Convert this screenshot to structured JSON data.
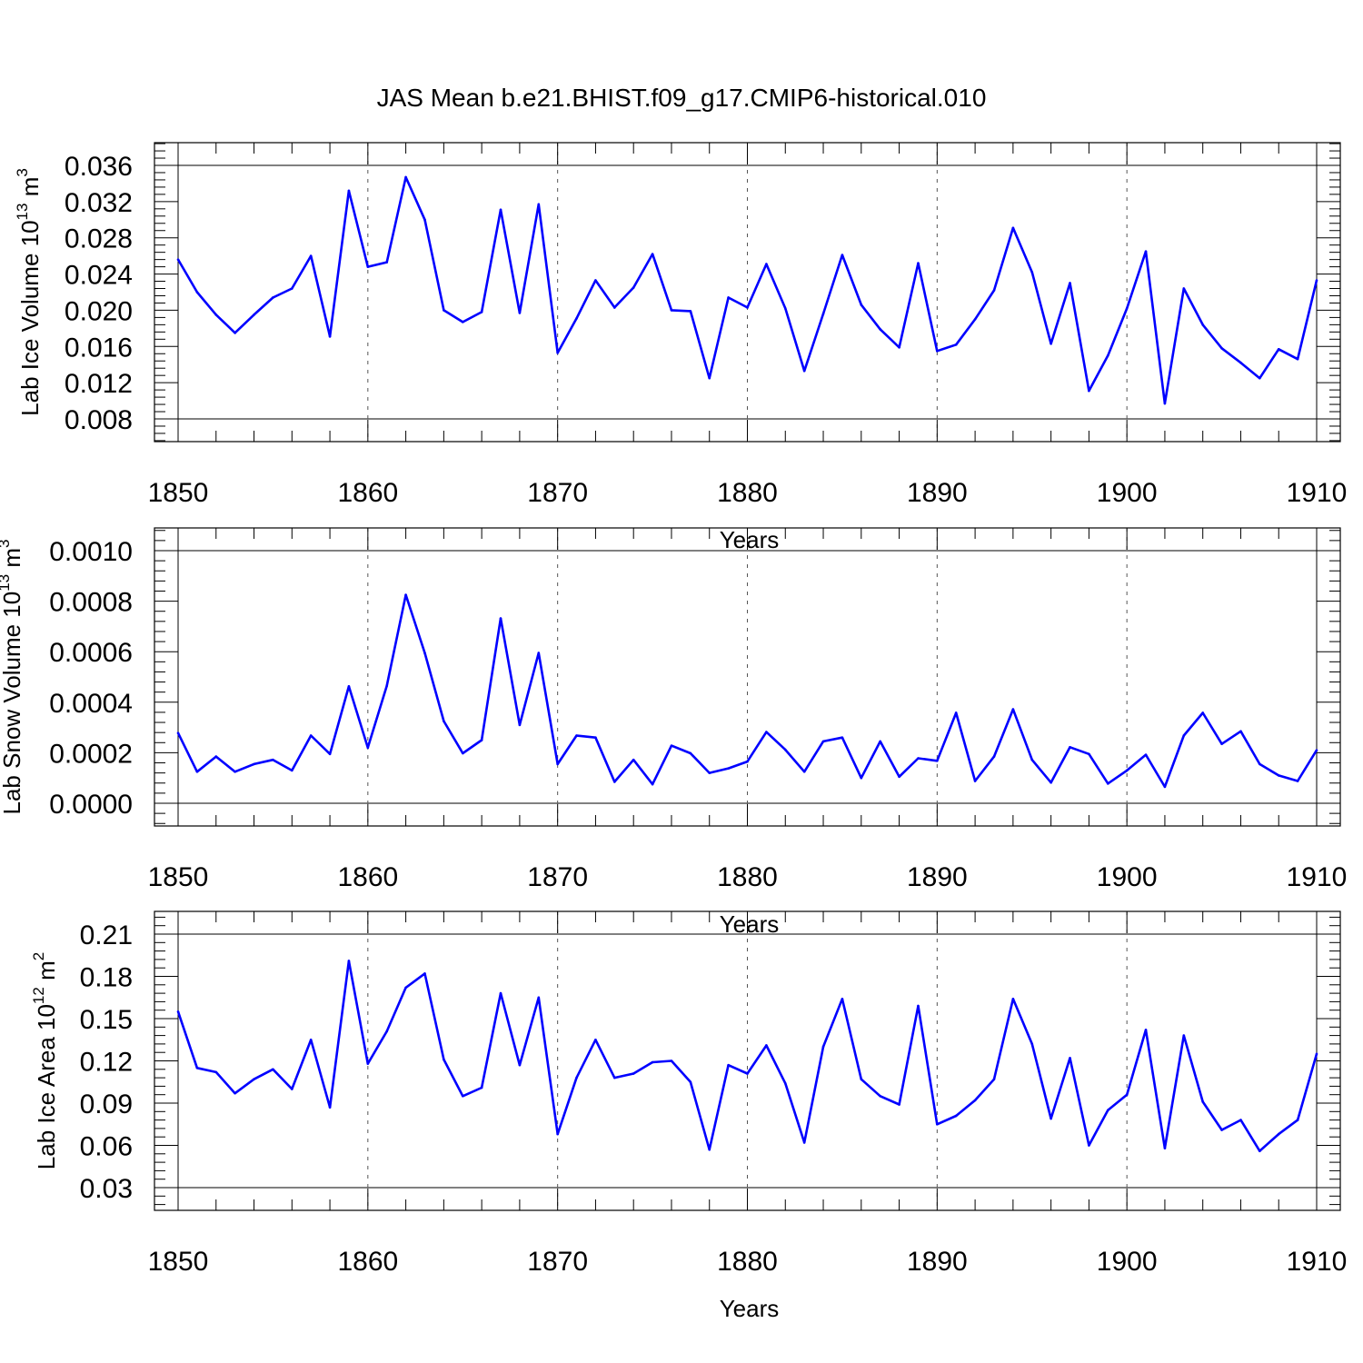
{
  "title": "JAS Mean b.e21.BHIST.f09_g17.CMIP6-historical.010",
  "chart_data": [
    {
      "type": "line",
      "ylabel": "Lab Ice Volume 10",
      "ylabel_exp": "13",
      "ylabel_unit": "m",
      "ylabel_unit_exp": "3",
      "xlabel": "Years",
      "xlim": [
        1850,
        1910
      ],
      "ylim": [
        0.008,
        0.038
      ],
      "xticks": [
        "1850",
        "1860",
        "1870",
        "1880",
        "1890",
        "1900",
        "1910"
      ],
      "yticks": [
        "0.008",
        "0.012",
        "0.016",
        "0.020",
        "0.024",
        "0.028",
        "0.032",
        "0.036"
      ],
      "ytick_values": [
        0.008,
        0.012,
        0.016,
        0.02,
        0.024,
        0.028,
        0.032,
        0.036
      ],
      "x_start": 1850,
      "values": [
        0.0256,
        0.022,
        0.0195,
        0.0175,
        0.0195,
        0.0214,
        0.0224,
        0.026,
        0.0171,
        0.0332,
        0.0248,
        0.0253,
        0.0347,
        0.03,
        0.02,
        0.0187,
        0.0198,
        0.0311,
        0.0197,
        0.0317,
        0.0153,
        0.0191,
        0.0233,
        0.0203,
        0.0225,
        0.0262,
        0.02,
        0.0199,
        0.0125,
        0.0214,
        0.0203,
        0.0251,
        0.0202,
        0.0133,
        0.0196,
        0.0261,
        0.0206,
        0.0179,
        0.0159,
        0.0252,
        0.0155,
        0.0162,
        0.019,
        0.0222,
        0.0291,
        0.0242,
        0.0163,
        0.023,
        0.0111,
        0.015,
        0.0202,
        0.0265,
        0.0097,
        0.0224,
        0.0184,
        0.0158,
        0.0142,
        0.0125,
        0.0157,
        0.0146,
        0.0233
      ]
    },
    {
      "type": "line",
      "ylabel": "Lab Snow Volume 10",
      "ylabel_exp": "13",
      "ylabel_unit": "m",
      "ylabel_unit_exp": "3",
      "xlabel": "Years",
      "xlim": [
        1850,
        1910
      ],
      "ylim": [
        0.0,
        0.00108
      ],
      "xticks": [
        "1850",
        "1860",
        "1870",
        "1880",
        "1890",
        "1900",
        "1910"
      ],
      "yticks": [
        "0.0000",
        "0.0002",
        "0.0004",
        "0.0006",
        "0.0008",
        "0.0010"
      ],
      "ytick_values": [
        0.0,
        0.0002,
        0.0004,
        0.0006,
        0.0008,
        0.001
      ],
      "x_start": 1850,
      "values": [
        0.000278,
        0.000125,
        0.000185,
        0.000125,
        0.000155,
        0.000172,
        0.00013,
        0.000268,
        0.000195,
        0.000463,
        0.00022,
        0.000465,
        0.000825,
        0.000595,
        0.000325,
        0.000198,
        0.00025,
        0.000732,
        0.00031,
        0.000595,
        0.000155,
        0.000268,
        0.00026,
        8.5e-05,
        0.000172,
        7.5e-05,
        0.000228,
        0.000198,
        0.00012,
        0.000138,
        0.000165,
        0.000282,
        0.000212,
        0.000125,
        0.000245,
        0.00026,
        0.0001,
        0.000245,
        0.000105,
        0.000178,
        0.000168,
        0.000358,
        8.8e-05,
        0.000185,
        0.000372,
        0.000172,
        8.2e-05,
        0.000222,
        0.000195,
        7.8e-05,
        0.00013,
        0.000192,
        6.5e-05,
        0.000268,
        0.000358,
        0.000235,
        0.000285,
        0.000155,
        0.00011,
        8.8e-05,
        0.00021
      ]
    },
    {
      "type": "line",
      "ylabel": "Lab Ice Area 10",
      "ylabel_exp": "12",
      "ylabel_unit": "m",
      "ylabel_unit_exp": "2",
      "xlabel": "Years",
      "xlim": [
        1850,
        1910
      ],
      "ylim": [
        0.03,
        0.228
      ],
      "xticks": [
        "1850",
        "1860",
        "1870",
        "1880",
        "1890",
        "1900",
        "1910"
      ],
      "yticks": [
        "0.03",
        "0.06",
        "0.09",
        "0.12",
        "0.15",
        "0.18",
        "0.21"
      ],
      "ytick_values": [
        0.03,
        0.06,
        0.09,
        0.12,
        0.15,
        0.18,
        0.21
      ],
      "x_start": 1850,
      "values": [
        0.155,
        0.115,
        0.112,
        0.097,
        0.107,
        0.114,
        0.1,
        0.135,
        0.087,
        0.191,
        0.118,
        0.141,
        0.172,
        0.182,
        0.121,
        0.095,
        0.101,
        0.168,
        0.117,
        0.165,
        0.068,
        0.108,
        0.135,
        0.108,
        0.111,
        0.119,
        0.12,
        0.105,
        0.057,
        0.117,
        0.111,
        0.131,
        0.104,
        0.062,
        0.13,
        0.164,
        0.107,
        0.095,
        0.089,
        0.159,
        0.075,
        0.081,
        0.092,
        0.107,
        0.164,
        0.132,
        0.079,
        0.122,
        0.06,
        0.085,
        0.096,
        0.142,
        0.058,
        0.138,
        0.091,
        0.071,
        0.078,
        0.056,
        0.068,
        0.078,
        0.125
      ]
    }
  ]
}
